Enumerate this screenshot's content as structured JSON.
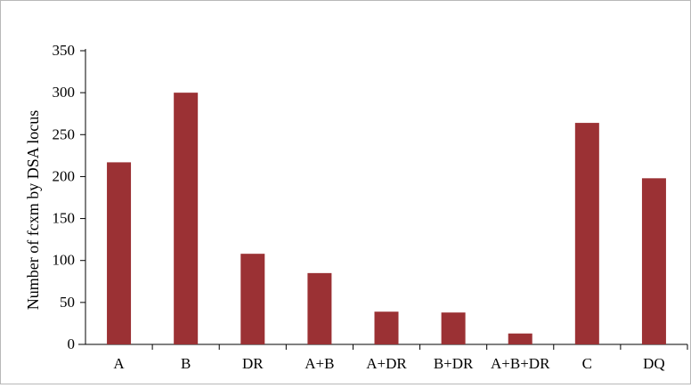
{
  "chart_data": {
    "type": "bar",
    "title": "",
    "xlabel": "",
    "ylabel": "Number of fcxm by DSA locus",
    "categories": [
      "A",
      "B",
      "DR",
      "A+B",
      "A+DR",
      "B+DR",
      "A+B+DR",
      "C",
      "DQ"
    ],
    "values": [
      217,
      300,
      108,
      85,
      39,
      38,
      13,
      264,
      198
    ],
    "ylim": [
      0,
      350
    ],
    "yticks": [
      "0",
      "50",
      "100",
      "150",
      "200",
      "250",
      "300",
      "350"
    ],
    "grid": false,
    "legend": "none",
    "colors": {
      "bar": "#9b3134",
      "axis": "#000000"
    }
  }
}
